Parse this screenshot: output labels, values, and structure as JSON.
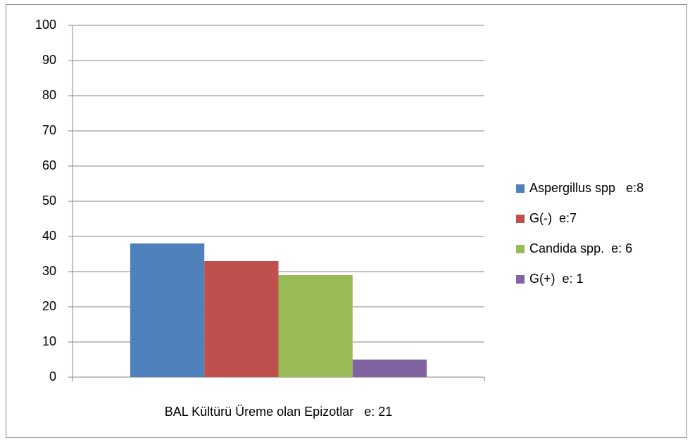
{
  "chart_data": {
    "type": "bar",
    "categories": [
      "BAL Kültürü Üreme olan Epizotlar   e: 21"
    ],
    "series": [
      {
        "name": "Aspergillus spp   e:8",
        "color": "#4f81bd",
        "values": [
          38
        ]
      },
      {
        "name": "G(-)  e:7",
        "color": "#c0504d",
        "values": [
          33
        ]
      },
      {
        "name": "Candida spp.  e: 6",
        "color": "#9bbb59",
        "values": [
          29
        ]
      },
      {
        "name": "G(+)  e: 1",
        "color": "#8064a2",
        "values": [
          5
        ]
      }
    ],
    "ylim": [
      0,
      100
    ],
    "yticks": [
      0,
      10,
      20,
      30,
      40,
      50,
      60,
      70,
      80,
      90,
      100
    ],
    "grid": true,
    "legend": "right"
  }
}
